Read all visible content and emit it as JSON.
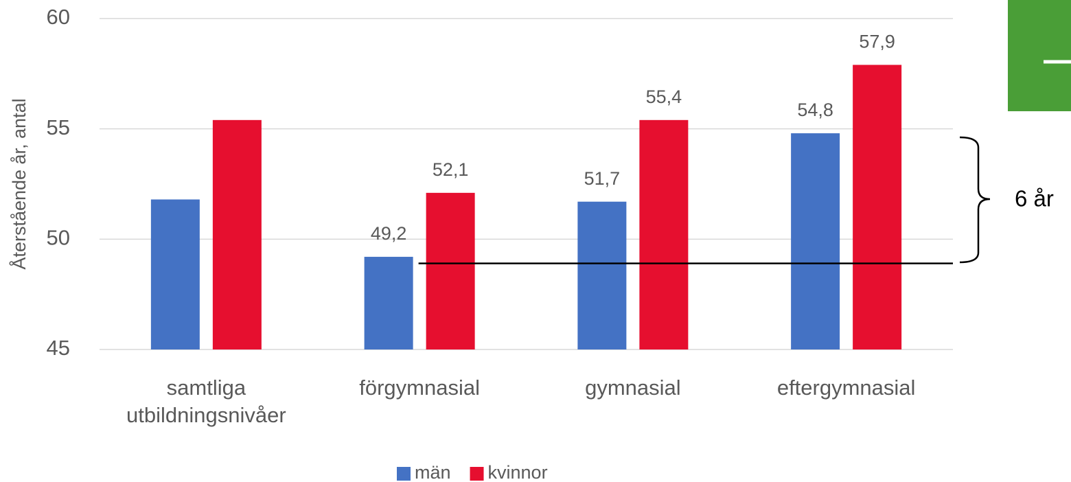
{
  "chart_data": {
    "type": "bar",
    "y_label": "Återstående år, antal",
    "categories": [
      "samtliga utbildningsnivåer",
      "förgymnasial",
      "gymnasial",
      "eftergymnasial"
    ],
    "series": [
      {
        "name": "män",
        "color": "#4472c4",
        "values": [
          51.8,
          49.2,
          51.7,
          54.8
        ],
        "value_labels": [
          null,
          "49,2",
          "51,7",
          "54,8"
        ]
      },
      {
        "name": "kvinnor",
        "color": "#e60f2f",
        "values": [
          55.4,
          52.1,
          55.4,
          57.9
        ],
        "value_labels": [
          null,
          "52,1",
          "55,4",
          "57,9"
        ]
      }
    ],
    "ylim": [
      45,
      60
    ],
    "yticks": [
      45,
      50,
      55,
      60
    ],
    "grid": true,
    "reference_line": 48.9,
    "annotation": "6 år",
    "legend": "bottom"
  }
}
